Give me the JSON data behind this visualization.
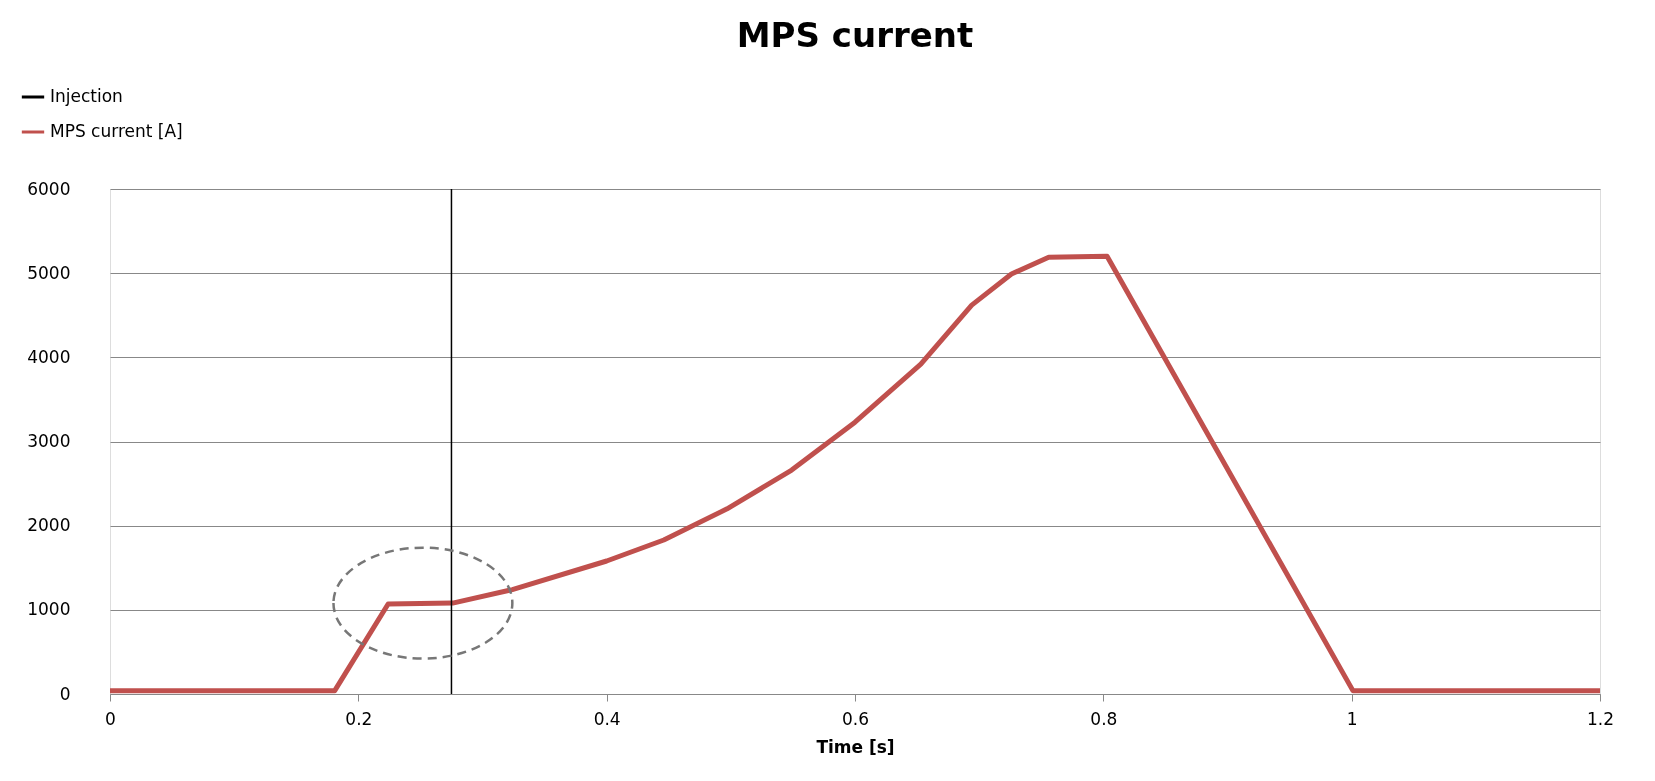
{
  "chart_data": {
    "type": "line",
    "title": "MPS current",
    "xlabel": "Time [s]",
    "x": [
      0,
      0.181,
      0.224,
      0.276,
      0.324,
      0.4,
      0.446,
      0.497,
      0.549,
      0.6,
      0.653,
      0.694,
      0.726,
      0.756,
      0.803,
      1.001,
      1.2
    ],
    "series": [
      {
        "name": "MPS current [A]",
        "color": "#c0504d",
        "values": [
          40,
          40,
          1070,
          1080,
          1240,
          1580,
          1830,
          2200,
          2660,
          3230,
          3920,
          4620,
          4990,
          5190,
          5200,
          40,
          40
        ]
      }
    ],
    "ref_lines": [
      {
        "axis": "x",
        "value": 0.275,
        "label": "Injection",
        "color": "#000000",
        "line_style": "solid"
      }
    ],
    "xlim": [
      0,
      1.2
    ],
    "xticks": [
      0,
      0.2,
      0.4,
      0.6,
      0.8,
      1,
      1.2
    ],
    "ylim": [
      0,
      6000
    ],
    "yticks": [
      0,
      1000,
      2000,
      3000,
      4000,
      5000,
      6000
    ],
    "grid": "y",
    "legend": "top left",
    "line_style": "solid",
    "marker": "none"
  }
}
